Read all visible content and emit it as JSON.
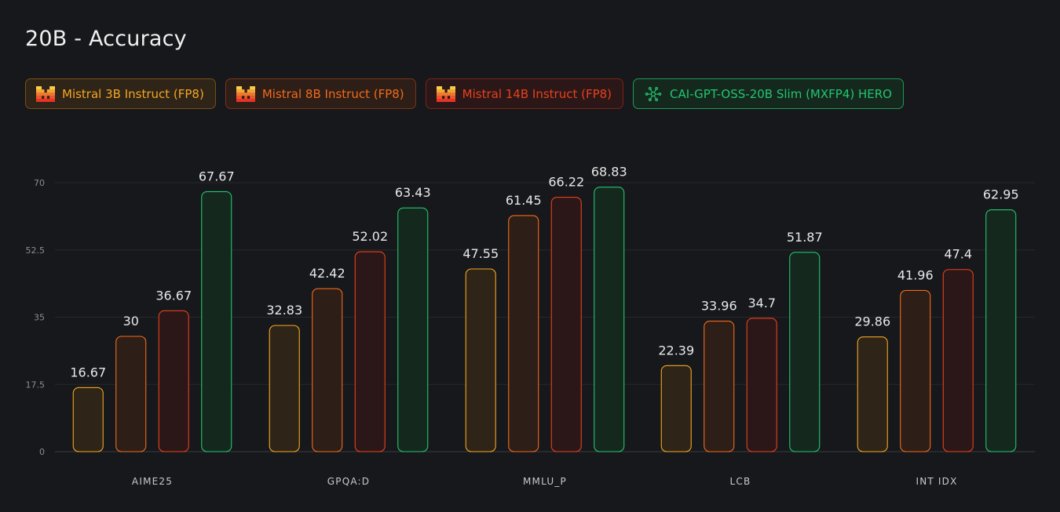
{
  "title": "20B - Accuracy",
  "legend": [
    {
      "label": "Mistral 3B Instruct (FP8)",
      "icon": "mistral-logo-icon",
      "color": "#f5a623",
      "fill": "#2e2418",
      "border": "#7a4f16"
    },
    {
      "label": "Mistral 8B Instruct (FP8)",
      "icon": "mistral-logo-icon",
      "color": "#f26a1b",
      "fill": "#2d1e17",
      "border": "#7a3516"
    },
    {
      "label": "Mistral 14B Instruct (FP8)",
      "icon": "mistral-logo-icon",
      "color": "#e8401c",
      "fill": "#2c1718",
      "border": "#7a2417"
    },
    {
      "label": "CAI-GPT-OSS-20B Slim (MXFP4) HERO",
      "icon": "snowflake-logo-icon",
      "color": "#22c56e",
      "fill": "#15281e",
      "border": "#1f9a58"
    }
  ],
  "chart_data": {
    "type": "bar",
    "title": "20B - Accuracy",
    "categories": [
      "AIME25",
      "GPQA:D",
      "MMLU_P",
      "LCB",
      "INT IDX"
    ],
    "series": [
      {
        "name": "Mistral 3B Instruct (FP8)",
        "values": [
          16.67,
          32.83,
          47.55,
          22.39,
          29.86
        ],
        "labels": [
          "16.67",
          "32.83",
          "47.55",
          "22.39",
          "29.86"
        ]
      },
      {
        "name": "Mistral 8B Instruct (FP8)",
        "values": [
          30,
          42.42,
          61.45,
          33.96,
          41.96
        ],
        "labels": [
          "30",
          "42.42",
          "61.45",
          "33.96",
          "41.96"
        ]
      },
      {
        "name": "Mistral 14B Instruct (FP8)",
        "values": [
          36.67,
          52.02,
          66.22,
          34.7,
          47.4
        ],
        "labels": [
          "36.67",
          "52.02",
          "66.22",
          "34.7",
          "47.4"
        ]
      },
      {
        "name": "CAI-GPT-OSS-20B Slim (MXFP4) HERO",
        "values": [
          67.67,
          63.43,
          68.83,
          51.87,
          62.95
        ],
        "labels": [
          "67.67",
          "63.43",
          "68.83",
          "51.87",
          "62.95"
        ]
      }
    ],
    "yticks": [
      "0",
      "17.5",
      "35",
      "52.5",
      "70"
    ],
    "ylim": [
      0,
      70
    ],
    "grid": true,
    "legend_position": "top"
  }
}
